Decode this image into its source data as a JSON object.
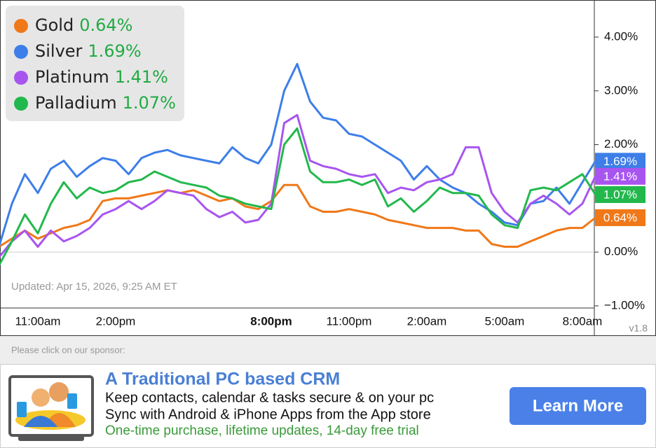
{
  "chart_data": {
    "type": "line",
    "categories": [
      null,
      null,
      null,
      "11:00am",
      null,
      null,
      null,
      null,
      null,
      "2:00pm",
      null,
      null,
      null,
      null,
      null,
      null,
      null,
      null,
      null,
      null,
      null,
      "8:00pm",
      null,
      null,
      null,
      null,
      null,
      "11:00pm",
      null,
      null,
      null,
      null,
      null,
      "2:00am",
      null,
      null,
      null,
      null,
      null,
      "5:00am",
      null,
      null,
      null,
      null,
      null,
      "8:00am",
      null
    ],
    "highlight_category": "8:00pm",
    "series": [
      {
        "name": "Gold",
        "color": "#f07818",
        "change_label": "0.64%",
        "values": [
          0.1,
          0.25,
          0.4,
          0.25,
          0.35,
          0.45,
          0.5,
          0.6,
          0.95,
          1.0,
          1.0,
          1.05,
          1.1,
          1.15,
          1.1,
          1.15,
          1.05,
          0.95,
          1.0,
          0.85,
          0.8,
          0.95,
          1.25,
          1.25,
          0.85,
          0.75,
          0.75,
          0.8,
          0.75,
          0.7,
          0.6,
          0.55,
          0.5,
          0.45,
          0.45,
          0.45,
          0.4,
          0.4,
          0.15,
          0.1,
          0.1,
          0.2,
          0.3,
          0.4,
          0.45,
          0.45,
          0.64
        ]
      },
      {
        "name": "Silver",
        "color": "#3d7ee8",
        "change_label": "1.69%",
        "values": [
          0.1,
          0.9,
          1.45,
          1.1,
          1.55,
          1.7,
          1.4,
          1.6,
          1.75,
          1.7,
          1.45,
          1.75,
          1.85,
          1.9,
          1.8,
          1.75,
          1.7,
          1.65,
          1.95,
          1.75,
          1.65,
          2.0,
          3.0,
          3.5,
          2.8,
          2.5,
          2.45,
          2.2,
          2.15,
          2.0,
          1.85,
          1.7,
          1.35,
          1.6,
          1.35,
          1.2,
          1.1,
          0.9,
          0.75,
          0.55,
          0.5,
          0.9,
          0.95,
          1.2,
          0.9,
          1.3,
          1.69
        ]
      },
      {
        "name": "Platinum",
        "color": "#a855f0",
        "change_label": "1.41%",
        "values": [
          -0.1,
          0.2,
          0.4,
          0.1,
          0.4,
          0.2,
          0.3,
          0.45,
          0.7,
          0.8,
          0.95,
          0.8,
          0.95,
          1.15,
          1.1,
          1.05,
          0.8,
          0.65,
          0.75,
          0.55,
          0.6,
          0.9,
          2.4,
          2.55,
          1.7,
          1.6,
          1.55,
          1.45,
          1.4,
          1.45,
          1.1,
          1.2,
          1.15,
          1.3,
          1.35,
          1.45,
          1.95,
          1.95,
          1.1,
          0.75,
          0.55,
          0.9,
          1.05,
          0.9,
          0.7,
          0.9,
          1.41
        ]
      },
      {
        "name": "Palladium",
        "color": "#22b84c",
        "change_label": "1.07%",
        "values": [
          -0.25,
          0.2,
          0.7,
          0.35,
          0.9,
          1.3,
          1.0,
          1.2,
          1.1,
          1.15,
          1.3,
          1.35,
          1.5,
          1.4,
          1.3,
          1.25,
          1.2,
          1.05,
          1.0,
          0.9,
          0.85,
          0.8,
          2.0,
          2.3,
          1.5,
          1.3,
          1.3,
          1.35,
          1.25,
          1.35,
          0.85,
          1.0,
          0.75,
          0.95,
          1.2,
          1.1,
          1.1,
          1.05,
          0.7,
          0.5,
          0.45,
          1.15,
          1.2,
          1.15,
          1.3,
          1.45,
          1.07
        ]
      }
    ],
    "ylim": [
      -1.04,
      4.69
    ],
    "yticks": [
      {
        "value": -1,
        "label": "−1.00%"
      },
      {
        "value": 0,
        "label": "0.00%"
      },
      {
        "value": 2,
        "label": "2.00%"
      },
      {
        "value": 3,
        "label": "3.00%"
      },
      {
        "value": 4,
        "label": "4.00%"
      }
    ],
    "legend": "top-left",
    "change_color": "#22aa44"
  },
  "updated": "Updated: Apr 15, 2026, 9:25 AM ET",
  "version": "v1.8",
  "sponsor": {
    "prompt": "Please click on our sponsor:",
    "title": "A Traditional PC based CRM",
    "lines": [
      "Keep contacts, calendar & tasks secure & on your pc",
      "Sync with Android & iPhone Apps from the App store"
    ],
    "offer": "One-time purchase, lifetime updates, 14-day free trial",
    "button": "Learn More"
  }
}
